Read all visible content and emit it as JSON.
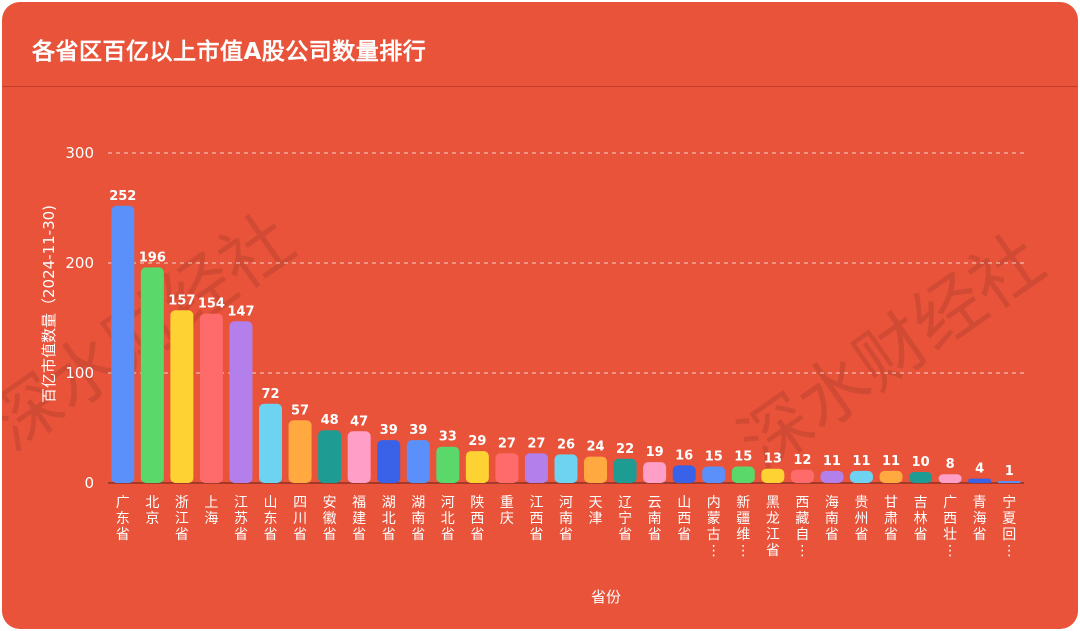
{
  "title": "各省区百亿以上市值A股公司数量排行",
  "watermark": "深水财经社",
  "chart_data": {
    "type": "bar",
    "title": "各省区百亿以上市值A股公司数量排行",
    "xlabel": "省份",
    "ylabel": "百亿市值数量（2024-11-30)",
    "ylim": [
      0,
      300
    ],
    "yticks": [
      0,
      100,
      200,
      300
    ],
    "grid": true,
    "categories": [
      "广东省",
      "北京",
      "浙江省",
      "上海",
      "江苏省",
      "山东省",
      "四川省",
      "安徽省",
      "福建省",
      "湖北省",
      "湖南省",
      "河北省",
      "陕西省",
      "重庆",
      "江西省",
      "河南省",
      "天津",
      "辽宁省",
      "云南省",
      "山西省",
      "内蒙古...",
      "新疆维...",
      "黑龙江省",
      "西藏自...",
      "海南省",
      "贵州省",
      "甘肃省",
      "吉林省",
      "广西壮...",
      "青海省",
      "宁夏回..."
    ],
    "category_labels": [
      "广东省",
      "北京",
      "浙江省",
      "上海",
      "江苏省",
      "山东省",
      "四川省",
      "安徽省",
      "福建省",
      "湖北省",
      "湖南省",
      "河北省",
      "陕西省",
      "重庆",
      "江西省",
      "河南省",
      "天津",
      "辽宁省",
      "云南省",
      "山西省",
      "内蒙古…",
      "新疆维…",
      "黑龙江省",
      "西藏自…",
      "海南省",
      "贵州省",
      "甘肃省",
      "吉林省",
      "广西壮…",
      "青海省",
      "宁夏回…"
    ],
    "values": [
      252,
      196,
      157,
      154,
      147,
      72,
      57,
      48,
      47,
      39,
      39,
      33,
      29,
      27,
      27,
      26,
      24,
      22,
      19,
      16,
      15,
      15,
      13,
      12,
      11,
      11,
      11,
      10,
      8,
      4,
      1
    ],
    "colors": [
      "#5b8ff9",
      "#5ad86a",
      "#ffd234",
      "#ff6b6b",
      "#b37feb",
      "#6dd3f0",
      "#ffa940",
      "#1e9b93",
      "#ff9ec7",
      "#3a62e8",
      "#5b8ff9",
      "#5ad86a",
      "#ffd234",
      "#ff6b6b",
      "#b37feb",
      "#6dd3f0",
      "#ffa940",
      "#1e9b93",
      "#ff9ec7",
      "#3a62e8",
      "#5b8ff9",
      "#5ad86a",
      "#ffd234",
      "#ff6b6b",
      "#b37feb",
      "#6dd3f0",
      "#ffa940",
      "#1e9b93",
      "#ff9ec7",
      "#3a62e8",
      "#5b8ff9"
    ]
  },
  "colors": {
    "background": "#e8533a",
    "grid": "#ffffff",
    "text": "#ffffff"
  }
}
